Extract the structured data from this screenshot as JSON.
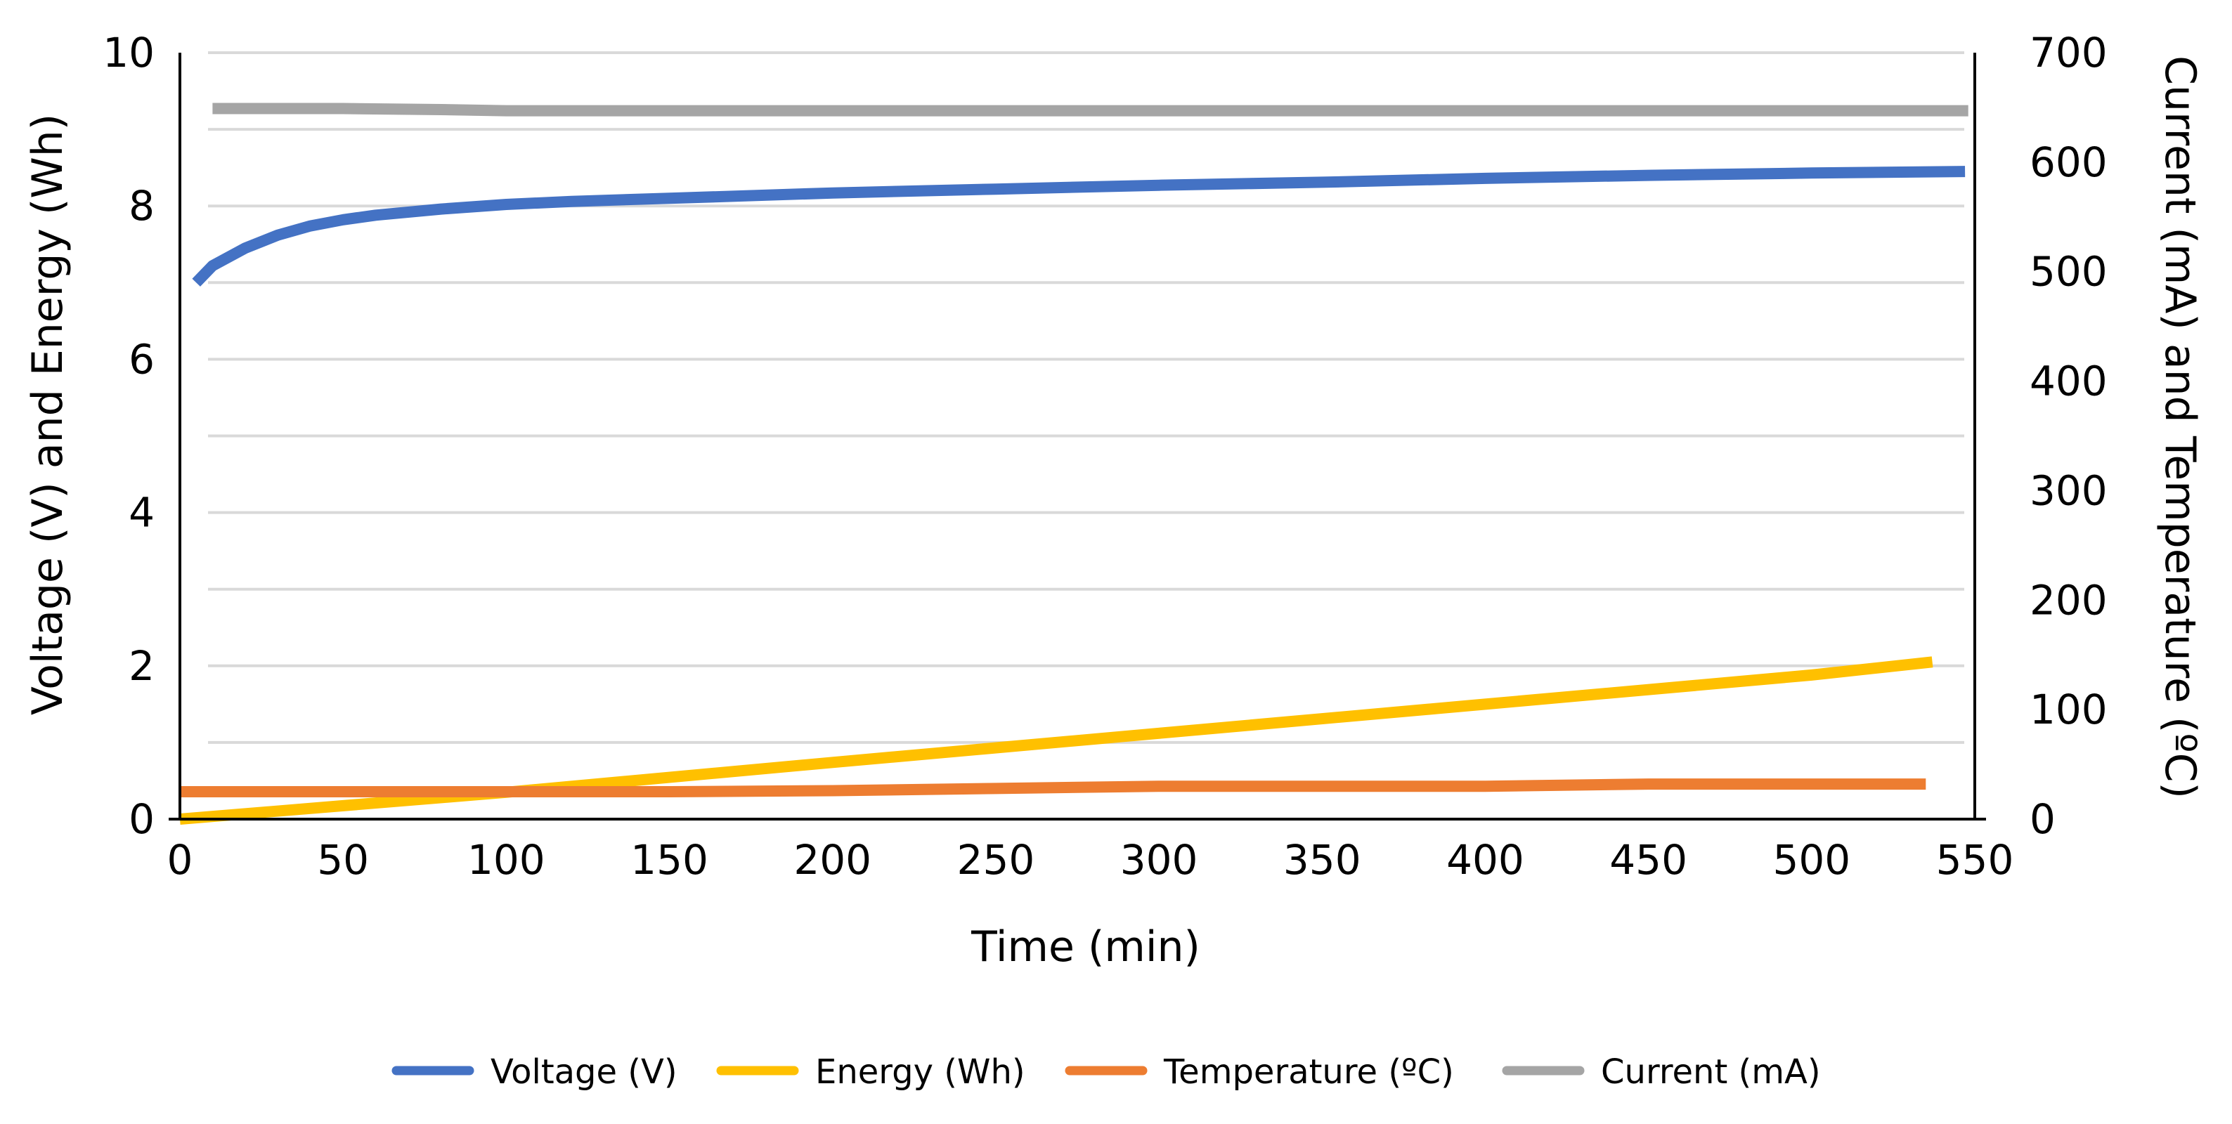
{
  "chart_data": {
    "type": "line",
    "title": "",
    "xlabel": "Time (min)",
    "ylabel_left": "Voltage (V) and Energy (Wh)",
    "ylabel_right": "Current (mA) and Temperature (ºC)",
    "xlim": [
      0,
      550
    ],
    "ylim_left": [
      0,
      10
    ],
    "ylim_right": [
      0,
      700
    ],
    "x_ticks": [
      "0",
      "50",
      "100",
      "150",
      "200",
      "250",
      "300",
      "350",
      "400",
      "450",
      "500",
      "550"
    ],
    "y_ticks_left": [
      "0",
      "2",
      "4",
      "6",
      "8",
      "10"
    ],
    "y_ticks_right": [
      "0",
      "100",
      "200",
      "300",
      "400",
      "500",
      "600",
      "700"
    ],
    "grid": true,
    "legend_position": "bottom",
    "series": [
      {
        "name": "Voltage (V)",
        "axis": "left",
        "color": "#4472C4",
        "points": [
          [
            5,
            7.0
          ],
          [
            10,
            7.22
          ],
          [
            20,
            7.45
          ],
          [
            30,
            7.62
          ],
          [
            40,
            7.74
          ],
          [
            50,
            7.82
          ],
          [
            60,
            7.88
          ],
          [
            80,
            7.96
          ],
          [
            100,
            8.02
          ],
          [
            120,
            8.06
          ],
          [
            150,
            8.1
          ],
          [
            200,
            8.17
          ],
          [
            250,
            8.22
          ],
          [
            300,
            8.27
          ],
          [
            350,
            8.31
          ],
          [
            400,
            8.36
          ],
          [
            450,
            8.4
          ],
          [
            500,
            8.43
          ],
          [
            547,
            8.45
          ]
        ]
      },
      {
        "name": "Energy (Wh)",
        "axis": "left",
        "color": "#FFC000",
        "points": [
          [
            0,
            0.0
          ],
          [
            100,
            0.35
          ],
          [
            200,
            0.74
          ],
          [
            300,
            1.12
          ],
          [
            400,
            1.5
          ],
          [
            500,
            1.88
          ],
          [
            537,
            2.05
          ]
        ]
      },
      {
        "name": "Temperature (ºC)",
        "axis": "right",
        "color": "#ED7D31",
        "points": [
          [
            0,
            25
          ],
          [
            50,
            25
          ],
          [
            100,
            25
          ],
          [
            150,
            25
          ],
          [
            200,
            26
          ],
          [
            250,
            28
          ],
          [
            300,
            30
          ],
          [
            350,
            30
          ],
          [
            400,
            30
          ],
          [
            450,
            32
          ],
          [
            500,
            32
          ],
          [
            535,
            32
          ]
        ]
      },
      {
        "name": "Current (mA)",
        "axis": "right",
        "color": "#A5A5A5",
        "points": [
          [
            10,
            649
          ],
          [
            50,
            649
          ],
          [
            80,
            648
          ],
          [
            100,
            647
          ],
          [
            200,
            647
          ],
          [
            300,
            647
          ],
          [
            400,
            647
          ],
          [
            500,
            647
          ],
          [
            548,
            647
          ]
        ]
      }
    ]
  }
}
